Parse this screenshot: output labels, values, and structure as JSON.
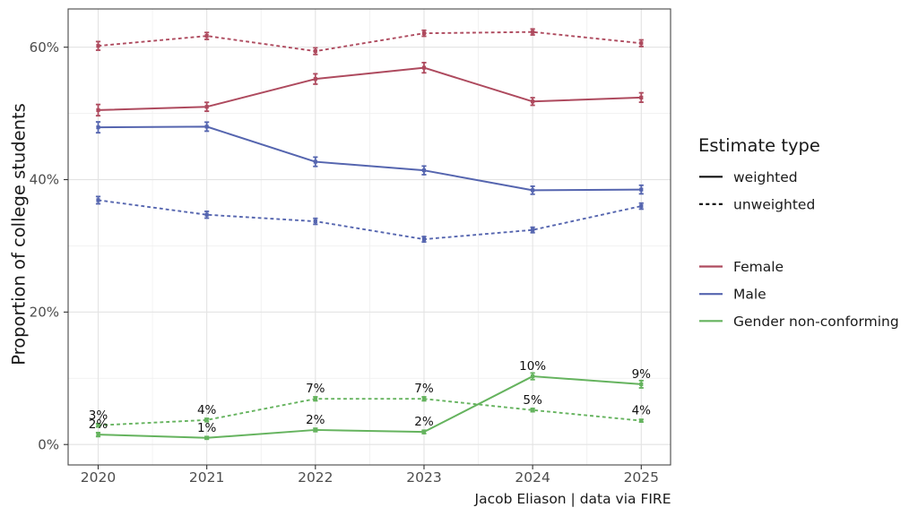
{
  "figure": {
    "ylabel": "Proportion of college students",
    "caption": "Jacob Eliason | data via FIRE"
  },
  "legend": {
    "estimate": {
      "title": "Estimate type",
      "items": [
        {
          "label": "weighted",
          "style": "solid"
        },
        {
          "label": "unweighted",
          "style": "dashed"
        }
      ]
    },
    "colors": {
      "items": [
        {
          "label": "Female",
          "color": "#ae4a5e"
        },
        {
          "label": "Male",
          "color": "#5565af"
        },
        {
          "label": "Gender non-conforming",
          "color": "#65b35e"
        }
      ]
    }
  },
  "chart_data": {
    "type": "line",
    "title": "",
    "xlabel": "",
    "ylabel": "Proportion of college students",
    "caption": "Jacob Eliason | data via FIRE",
    "x": [
      2020,
      2021,
      2022,
      2023,
      2024,
      2025
    ],
    "xtick_labels": [
      "2020",
      "2021",
      "2022",
      "2023",
      "2024",
      "2025"
    ],
    "ytick_values": [
      0,
      20,
      40,
      60
    ],
    "ytick_labels": [
      "0%",
      "20%",
      "40%",
      "60%"
    ],
    "yminor_values": [
      10,
      30,
      50
    ],
    "xminor_values": [
      2020.5,
      2021.5,
      2022.5,
      2023.5,
      2024.5
    ],
    "ylim": [
      -3.1,
      65.8
    ],
    "xlim": [
      2019.72,
      2025.27
    ],
    "grid": "major+minor",
    "legend_position": "right",
    "series": [
      {
        "name": "Female",
        "estimate": "weighted",
        "color": "#ae4a5e",
        "dash": "solid",
        "values": [
          50.5,
          51.0,
          55.2,
          56.9,
          51.8,
          52.4
        ],
        "se": [
          0.85,
          0.67,
          0.78,
          0.77,
          0.57,
          0.71
        ],
        "labels": null
      },
      {
        "name": "Female",
        "estimate": "unweighted",
        "color": "#ae4a5e",
        "dash": "dashed",
        "values": [
          60.2,
          61.7,
          59.4,
          62.1,
          62.3,
          60.6
        ],
        "se": [
          0.65,
          0.52,
          0.5,
          0.45,
          0.45,
          0.5
        ],
        "labels": null
      },
      {
        "name": "Male",
        "estimate": "weighted",
        "color": "#5565af",
        "dash": "solid",
        "values": [
          47.9,
          48.0,
          42.7,
          41.4,
          38.4,
          38.5
        ],
        "se": [
          0.82,
          0.68,
          0.7,
          0.65,
          0.6,
          0.65
        ],
        "labels": null
      },
      {
        "name": "Male",
        "estimate": "unweighted",
        "color": "#5565af",
        "dash": "dashed",
        "values": [
          36.9,
          34.7,
          33.7,
          31.0,
          32.4,
          36.0
        ],
        "se": [
          0.55,
          0.51,
          0.45,
          0.41,
          0.41,
          0.45
        ],
        "labels": null
      },
      {
        "name": "Gender non-conforming",
        "estimate": "weighted",
        "color": "#65b35e",
        "dash": "solid",
        "values": [
          1.5,
          1.0,
          2.2,
          1.9,
          10.3,
          9.1
        ],
        "se": [
          0.3,
          0.2,
          0.25,
          0.25,
          0.5,
          0.55
        ],
        "labels": [
          "2%",
          "1%",
          "2%",
          "2%",
          "10%",
          "9%"
        ]
      },
      {
        "name": "Gender non-conforming",
        "estimate": "unweighted",
        "color": "#65b35e",
        "dash": "dashed",
        "values": [
          2.9,
          3.7,
          6.9,
          6.9,
          5.2,
          3.6
        ],
        "se": [
          0.25,
          0.25,
          0.3,
          0.3,
          0.25,
          0.2
        ],
        "labels": [
          "3%",
          "4%",
          "7%",
          "7%",
          "5%",
          "4%"
        ]
      }
    ]
  }
}
